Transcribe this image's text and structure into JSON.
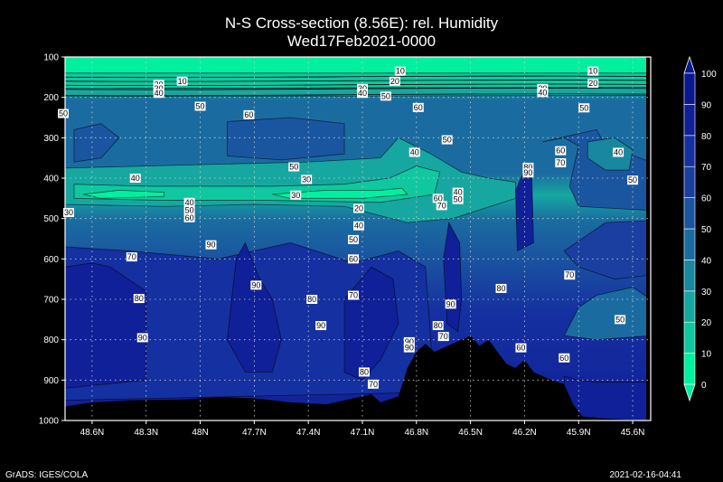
{
  "chart_data": {
    "type": "heatmap",
    "title": "N-S Cross-section (8.56E): rel. Humidity",
    "subtitle": "Wed17Feb2021-0000",
    "x_ticks": [
      "48.6N",
      "48.3N",
      "48N",
      "47.7N",
      "47.4N",
      "47.1N",
      "46.8N",
      "46.5N",
      "46.2N",
      "45.9N",
      "45.6N"
    ],
    "y_ticks": [
      "100",
      "200",
      "300",
      "400",
      "500",
      "600",
      "700",
      "800",
      "900",
      "1000"
    ],
    "ylim": [
      1000,
      100
    ],
    "grid": true,
    "colorbar": {
      "labels": [
        "0",
        "10",
        "20",
        "30",
        "40",
        "50",
        "60",
        "70",
        "80",
        "90",
        "100"
      ],
      "colors": [
        "#00f0a0",
        "#10c8a0",
        "#16a8a0",
        "#1888a0",
        "#1a6ca0",
        "#1a55a0",
        "#1a3fa0",
        "#1530a0",
        "#102098",
        "#0a1890"
      ]
    },
    "contour_labels": [
      {
        "text": "10",
        "lat": 48.1,
        "p": 160
      },
      {
        "text": "20",
        "lat": 48.23,
        "p": 168
      },
      {
        "text": "30",
        "lat": 48.23,
        "p": 178
      },
      {
        "text": "40",
        "lat": 48.23,
        "p": 190
      },
      {
        "text": "50",
        "lat": 48.0,
        "p": 222
      },
      {
        "text": "50",
        "lat": 48.76,
        "p": 240
      },
      {
        "text": "60",
        "lat": 47.73,
        "p": 243
      },
      {
        "text": "30",
        "lat": 47.1,
        "p": 178
      },
      {
        "text": "40",
        "lat": 47.1,
        "p": 190
      },
      {
        "text": "50",
        "lat": 46.97,
        "p": 197
      },
      {
        "text": "60",
        "lat": 46.79,
        "p": 225
      },
      {
        "text": "10",
        "lat": 46.89,
        "p": 135
      },
      {
        "text": "20",
        "lat": 46.92,
        "p": 160
      },
      {
        "text": "10",
        "lat": 45.82,
        "p": 135
      },
      {
        "text": "20",
        "lat": 45.82,
        "p": 165
      },
      {
        "text": "30",
        "lat": 46.1,
        "p": 178
      },
      {
        "text": "40",
        "lat": 46.1,
        "p": 188
      },
      {
        "text": "50",
        "lat": 45.87,
        "p": 226
      },
      {
        "text": "50",
        "lat": 46.63,
        "p": 305
      },
      {
        "text": "60",
        "lat": 46.0,
        "p": 332
      },
      {
        "text": "70",
        "lat": 46.0,
        "p": 362
      },
      {
        "text": "40",
        "lat": 45.68,
        "p": 336
      },
      {
        "text": "50",
        "lat": 45.6,
        "p": 405
      },
      {
        "text": "80",
        "lat": 46.18,
        "p": 373
      },
      {
        "text": "90",
        "lat": 46.18,
        "p": 387
      },
      {
        "text": "40",
        "lat": 46.81,
        "p": 336
      },
      {
        "text": "50",
        "lat": 47.48,
        "p": 372
      },
      {
        "text": "30",
        "lat": 47.41,
        "p": 403
      },
      {
        "text": "30",
        "lat": 47.47,
        "p": 442
      },
      {
        "text": "40",
        "lat": 48.36,
        "p": 400
      },
      {
        "text": "30",
        "lat": 48.73,
        "p": 485
      },
      {
        "text": "40",
        "lat": 48.06,
        "p": 460
      },
      {
        "text": "50",
        "lat": 48.06,
        "p": 480
      },
      {
        "text": "60",
        "lat": 48.06,
        "p": 498
      },
      {
        "text": "60",
        "lat": 46.68,
        "p": 450
      },
      {
        "text": "40",
        "lat": 46.57,
        "p": 435
      },
      {
        "text": "50",
        "lat": 46.57,
        "p": 453
      },
      {
        "text": "70",
        "lat": 46.66,
        "p": 468
      },
      {
        "text": "20",
        "lat": 47.12,
        "p": 475
      },
      {
        "text": "40",
        "lat": 47.12,
        "p": 518
      },
      {
        "text": "50",
        "lat": 47.15,
        "p": 552
      },
      {
        "text": "60",
        "lat": 47.15,
        "p": 600
      },
      {
        "text": "70",
        "lat": 48.38,
        "p": 595
      },
      {
        "text": "90",
        "lat": 47.94,
        "p": 565
      },
      {
        "text": "90",
        "lat": 47.69,
        "p": 665
      },
      {
        "text": "70",
        "lat": 47.15,
        "p": 690
      },
      {
        "text": "80",
        "lat": 48.34,
        "p": 698
      },
      {
        "text": "80",
        "lat": 47.38,
        "p": 700
      },
      {
        "text": "90",
        "lat": 47.33,
        "p": 765
      },
      {
        "text": "90",
        "lat": 48.32,
        "p": 795
      },
      {
        "text": "90",
        "lat": 46.61,
        "p": 712
      },
      {
        "text": "80",
        "lat": 46.68,
        "p": 765
      },
      {
        "text": "70",
        "lat": 46.65,
        "p": 792
      },
      {
        "text": "90",
        "lat": 46.84,
        "p": 805
      },
      {
        "text": "90",
        "lat": 46.84,
        "p": 820
      },
      {
        "text": "80",
        "lat": 46.33,
        "p": 673
      },
      {
        "text": "70",
        "lat": 45.95,
        "p": 640
      },
      {
        "text": "50",
        "lat": 45.67,
        "p": 750
      },
      {
        "text": "60",
        "lat": 46.22,
        "p": 820
      },
      {
        "text": "60",
        "lat": 45.98,
        "p": 845
      },
      {
        "text": "80",
        "lat": 47.09,
        "p": 880
      },
      {
        "text": "70",
        "lat": 47.04,
        "p": 910
      }
    ]
  },
  "footer": {
    "left": "GrADS: IGES/COLA",
    "right": "2021-02-16-04:41"
  }
}
